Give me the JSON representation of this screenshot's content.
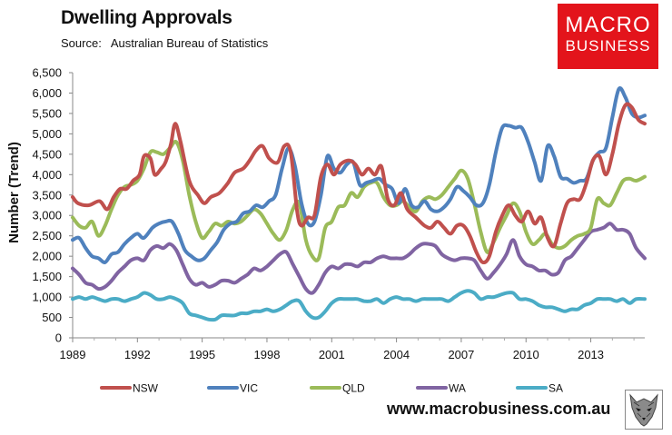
{
  "header": {
    "title": "Dwelling Approvals",
    "source_label": "Source:",
    "source_value": "Australian Bureau of Statistics"
  },
  "logo": {
    "line1": "MACRO",
    "line2": "BUSINESS"
  },
  "footer": {
    "url": "www.macrobusiness.com.au"
  },
  "colors": {
    "NSW": "#c0504d",
    "VIC": "#4f81bd",
    "QLD": "#9bbb59",
    "WA": "#8064a2",
    "SA": "#4bacc6"
  },
  "chart_data": {
    "type": "line",
    "title": "Dwelling Approvals",
    "xlabel": "",
    "ylabel": "Number (Trend)",
    "xlim": [
      1989,
      2015.5
    ],
    "ylim": [
      0,
      6500
    ],
    "yticks": [
      0,
      500,
      1000,
      1500,
      2000,
      2500,
      3000,
      3500,
      4000,
      4500,
      5000,
      5500,
      6000,
      6500
    ],
    "ytick_labels": [
      "0",
      "500",
      "1,000",
      "1,500",
      "2,000",
      "2,500",
      "3,000",
      "3,500",
      "4,000",
      "4,500",
      "5,000",
      "5,500",
      "6,000",
      "6,500"
    ],
    "xticks": [
      1989,
      1992,
      1995,
      1998,
      2001,
      2004,
      2007,
      2010,
      2013
    ],
    "xtick_labels": [
      "1989",
      "1992",
      "1995",
      "1998",
      "2001",
      "2004",
      "2007",
      "2010",
      "2013"
    ],
    "grid": false,
    "legend": "bottom",
    "series": [
      {
        "name": "NSW",
        "x": [
          1989.0,
          1989.25,
          1989.75,
          1990.25,
          1990.6,
          1990.9,
          1991.2,
          1991.5,
          1991.8,
          1992.1,
          1992.3,
          1992.6,
          1992.8,
          1993.1,
          1993.3,
          1993.55,
          1993.75,
          1994.0,
          1994.4,
          1994.8,
          1995.1,
          1995.4,
          1995.8,
          1996.2,
          1996.5,
          1996.9,
          1997.2,
          1997.5,
          1997.8,
          1998.1,
          1998.5,
          1998.8,
          1999.1,
          1999.4,
          1999.6,
          1999.9,
          2000.2,
          2000.5,
          2000.8,
          2001.1,
          2001.4,
          2001.8,
          2002.1,
          2002.4,
          2002.7,
          2003.0,
          2003.3,
          2003.6,
          2003.9,
          2004.2,
          2004.5,
          2004.9,
          2005.3,
          2005.6,
          2005.9,
          2006.2,
          2006.5,
          2006.8,
          2007.1,
          2007.4,
          2007.7,
          2008.0,
          2008.3,
          2008.6,
          2008.9,
          2009.2,
          2009.5,
          2009.8,
          2010.1,
          2010.4,
          2010.7,
          2011.0,
          2011.3,
          2011.6,
          2011.9,
          2012.2,
          2012.5,
          2012.8,
          2013.1,
          2013.4,
          2013.7,
          2014.0,
          2014.3,
          2014.6,
          2014.9,
          2015.2,
          2015.5
        ],
        "values": [
          3450,
          3300,
          3250,
          3350,
          3150,
          3450,
          3650,
          3650,
          3850,
          4000,
          4450,
          4400,
          4000,
          4150,
          4300,
          4750,
          5250,
          4800,
          3850,
          3500,
          3300,
          3450,
          3550,
          3800,
          4050,
          4150,
          4350,
          4600,
          4700,
          4400,
          4300,
          4700,
          4550,
          3100,
          2750,
          2950,
          3000,
          3950,
          4250,
          4000,
          4250,
          4350,
          4250,
          4000,
          4150,
          4000,
          4200,
          3400,
          3250,
          3550,
          3150,
          2950,
          2750,
          2700,
          2850,
          2700,
          2550,
          2750,
          2750,
          2500,
          2100,
          1850,
          2000,
          2600,
          3000,
          3250,
          3000,
          2850,
          3100,
          2800,
          2950,
          2450,
          2250,
          2800,
          3300,
          3400,
          3400,
          3800,
          4350,
          4450,
          4000,
          4500,
          5250,
          5700,
          5650,
          5350,
          5250
        ]
      },
      {
        "name": "VIC",
        "x": [
          1989.0,
          1989.3,
          1989.6,
          1989.9,
          1990.2,
          1990.5,
          1990.8,
          1991.1,
          1991.4,
          1991.7,
          1992.0,
          1992.3,
          1992.7,
          1993.0,
          1993.3,
          1993.6,
          1993.9,
          1994.2,
          1994.5,
          1994.8,
          1995.1,
          1995.4,
          1995.7,
          1996.0,
          1996.3,
          1996.6,
          1996.9,
          1997.2,
          1997.5,
          1997.8,
          1998.1,
          1998.4,
          1998.7,
          1999.0,
          1999.3,
          1999.6,
          1999.9,
          2000.2,
          2000.5,
          2000.8,
          2001.1,
          2001.4,
          2001.7,
          2002.0,
          2002.3,
          2002.6,
          2002.9,
          2003.2,
          2003.5,
          2003.8,
          2004.1,
          2004.4,
          2004.7,
          2005.0,
          2005.3,
          2005.6,
          2005.9,
          2006.2,
          2006.5,
          2006.8,
          2007.1,
          2007.4,
          2007.7,
          2008.0,
          2008.3,
          2008.6,
          2008.9,
          2009.2,
          2009.5,
          2009.8,
          2010.1,
          2010.4,
          2010.7,
          2011.0,
          2011.3,
          2011.6,
          2011.9,
          2012.2,
          2012.5,
          2012.8,
          2013.1,
          2013.4,
          2013.7,
          2014.0,
          2014.3,
          2014.6,
          2014.9,
          2015.2,
          2015.5
        ],
        "values": [
          2400,
          2450,
          2200,
          2000,
          1950,
          1850,
          2050,
          2100,
          2300,
          2450,
          2550,
          2450,
          2700,
          2800,
          2850,
          2850,
          2550,
          2150,
          2000,
          1900,
          1950,
          2150,
          2350,
          2650,
          2800,
          2850,
          3050,
          3100,
          3250,
          3200,
          3350,
          3500,
          4150,
          4650,
          4200,
          3300,
          2800,
          2850,
          3500,
          4450,
          4150,
          4050,
          4250,
          4300,
          3750,
          3800,
          3850,
          3900,
          3750,
          3650,
          3300,
          3650,
          3250,
          3200,
          3350,
          3150,
          3100,
          3200,
          3400,
          3700,
          3600,
          3450,
          3250,
          3300,
          3750,
          4550,
          5150,
          5200,
          5150,
          5150,
          4800,
          4300,
          3850,
          4700,
          4450,
          3950,
          3900,
          3800,
          3850,
          3900,
          4350,
          4550,
          4650,
          5400,
          6100,
          5900,
          5500,
          5400,
          5450
        ]
      },
      {
        "name": "QLD",
        "x": [
          1989.0,
          1989.3,
          1989.6,
          1989.9,
          1990.2,
          1990.5,
          1990.8,
          1991.1,
          1991.4,
          1991.7,
          1992.0,
          1992.3,
          1992.6,
          1992.9,
          1993.2,
          1993.5,
          1993.8,
          1994.1,
          1994.4,
          1994.7,
          1995.0,
          1995.3,
          1995.6,
          1995.9,
          1996.2,
          1996.5,
          1996.8,
          1997.1,
          1997.4,
          1997.7,
          1998.0,
          1998.3,
          1998.6,
          1998.9,
          1999.2,
          1999.5,
          1999.8,
          2000.1,
          2000.4,
          2000.7,
          2001.0,
          2001.3,
          2001.6,
          2001.9,
          2002.2,
          2002.5,
          2002.8,
          2003.1,
          2003.4,
          2003.7,
          2004.0,
          2004.3,
          2004.6,
          2004.9,
          2005.2,
          2005.5,
          2005.8,
          2006.1,
          2006.4,
          2006.7,
          2007.0,
          2007.3,
          2007.6,
          2007.9,
          2008.2,
          2008.5,
          2008.8,
          2009.1,
          2009.4,
          2009.7,
          2010.0,
          2010.3,
          2010.6,
          2010.9,
          2011.2,
          2011.5,
          2011.8,
          2012.1,
          2012.4,
          2012.7,
          2013.0,
          2013.3,
          2013.6,
          2013.9,
          2014.2,
          2014.5,
          2014.8,
          2015.1,
          2015.5
        ],
        "values": [
          2950,
          2750,
          2700,
          2850,
          2500,
          2750,
          3150,
          3500,
          3700,
          3750,
          3850,
          4150,
          4550,
          4550,
          4500,
          4650,
          4800,
          4350,
          3500,
          2850,
          2450,
          2600,
          2800,
          2750,
          2850,
          2800,
          2850,
          3000,
          3150,
          3050,
          2800,
          2550,
          2400,
          2650,
          3150,
          3300,
          2400,
          2000,
          1950,
          2700,
          2850,
          3200,
          3250,
          3550,
          3450,
          3700,
          3800,
          3800,
          3450,
          3250,
          3250,
          3350,
          3200,
          3100,
          3350,
          3450,
          3400,
          3500,
          3700,
          3900,
          4100,
          3900,
          3300,
          2600,
          2100,
          2350,
          2700,
          3000,
          3300,
          3100,
          2600,
          2300,
          2400,
          2550,
          2300,
          2200,
          2250,
          2400,
          2500,
          2550,
          2700,
          3400,
          3300,
          3250,
          3550,
          3850,
          3900,
          3850,
          3950
        ]
      },
      {
        "name": "WA",
        "x": [
          1989.0,
          1989.3,
          1989.6,
          1989.9,
          1990.2,
          1990.5,
          1990.8,
          1991.1,
          1991.4,
          1991.7,
          1992.0,
          1992.3,
          1992.6,
          1992.9,
          1993.2,
          1993.5,
          1993.8,
          1994.1,
          1994.4,
          1994.7,
          1995.0,
          1995.3,
          1995.6,
          1995.9,
          1996.2,
          1996.5,
          1996.8,
          1997.1,
          1997.4,
          1997.7,
          1998.0,
          1998.3,
          1998.6,
          1998.9,
          1999.2,
          1999.5,
          1999.8,
          2000.1,
          2000.4,
          2000.7,
          2001.0,
          2001.3,
          2001.6,
          2001.9,
          2002.2,
          2002.5,
          2002.8,
          2003.1,
          2003.4,
          2003.7,
          2004.0,
          2004.3,
          2004.6,
          2004.9,
          2005.2,
          2005.5,
          2005.8,
          2006.1,
          2006.4,
          2006.7,
          2007.0,
          2007.3,
          2007.6,
          2007.9,
          2008.2,
          2008.5,
          2008.8,
          2009.1,
          2009.4,
          2009.7,
          2010.0,
          2010.3,
          2010.6,
          2010.9,
          2011.2,
          2011.5,
          2011.8,
          2012.1,
          2012.4,
          2012.7,
          2013.0,
          2013.3,
          2013.6,
          2013.9,
          2014.2,
          2014.5,
          2014.8,
          2015.1,
          2015.5
        ],
        "values": [
          1700,
          1550,
          1350,
          1300,
          1200,
          1250,
          1400,
          1600,
          1750,
          1900,
          1950,
          1900,
          2150,
          2250,
          2200,
          2300,
          2150,
          1800,
          1450,
          1300,
          1350,
          1250,
          1300,
          1400,
          1400,
          1350,
          1450,
          1550,
          1700,
          1650,
          1750,
          1900,
          2050,
          2100,
          1800,
          1500,
          1200,
          1100,
          1300,
          1600,
          1750,
          1700,
          1800,
          1800,
          1750,
          1850,
          1850,
          1950,
          2000,
          1950,
          1950,
          1950,
          2050,
          2200,
          2300,
          2300,
          2250,
          2050,
          1950,
          1900,
          1950,
          1950,
          1900,
          1650,
          1450,
          1600,
          1800,
          2050,
          2400,
          2000,
          1800,
          1750,
          1650,
          1650,
          1550,
          1600,
          1900,
          2000,
          2200,
          2400,
          2600,
          2650,
          2700,
          2800,
          2650,
          2650,
          2550,
          2200,
          1950
        ]
      },
      {
        "name": "SA",
        "x": [
          1989.0,
          1989.3,
          1989.6,
          1989.9,
          1990.2,
          1990.5,
          1990.8,
          1991.1,
          1991.4,
          1991.7,
          1992.0,
          1992.3,
          1992.6,
          1992.9,
          1993.2,
          1993.5,
          1993.8,
          1994.1,
          1994.4,
          1994.7,
          1995.0,
          1995.3,
          1995.6,
          1995.9,
          1996.2,
          1996.5,
          1996.8,
          1997.1,
          1997.4,
          1997.7,
          1998.0,
          1998.3,
          1998.6,
          1998.9,
          1999.2,
          1999.5,
          1999.8,
          2000.1,
          2000.4,
          2000.7,
          2001.0,
          2001.3,
          2001.6,
          2001.9,
          2002.2,
          2002.5,
          2002.8,
          2003.1,
          2003.4,
          2003.7,
          2004.0,
          2004.3,
          2004.6,
          2004.9,
          2005.2,
          2005.5,
          2005.8,
          2006.1,
          2006.4,
          2006.7,
          2007.0,
          2007.3,
          2007.6,
          2007.9,
          2008.2,
          2008.5,
          2008.8,
          2009.1,
          2009.4,
          2009.7,
          2010.0,
          2010.3,
          2010.6,
          2010.9,
          2011.2,
          2011.5,
          2011.8,
          2012.1,
          2012.4,
          2012.7,
          2013.0,
          2013.3,
          2013.6,
          2013.9,
          2014.2,
          2014.5,
          2014.8,
          2015.1,
          2015.5
        ],
        "values": [
          950,
          1000,
          950,
          1000,
          950,
          900,
          950,
          950,
          900,
          950,
          1000,
          1100,
          1050,
          950,
          950,
          1000,
          950,
          850,
          600,
          550,
          500,
          450,
          450,
          550,
          550,
          550,
          600,
          600,
          650,
          650,
          700,
          650,
          700,
          800,
          900,
          900,
          650,
          500,
          500,
          650,
          850,
          950,
          950,
          950,
          950,
          900,
          900,
          950,
          850,
          950,
          1000,
          950,
          950,
          900,
          950,
          950,
          950,
          950,
          900,
          1000,
          1100,
          1150,
          1100,
          950,
          1000,
          1000,
          1050,
          1100,
          1100,
          950,
          950,
          900,
          800,
          750,
          750,
          700,
          650,
          700,
          700,
          800,
          850,
          950,
          950,
          950,
          900,
          950,
          850,
          950,
          950
        ]
      }
    ]
  }
}
